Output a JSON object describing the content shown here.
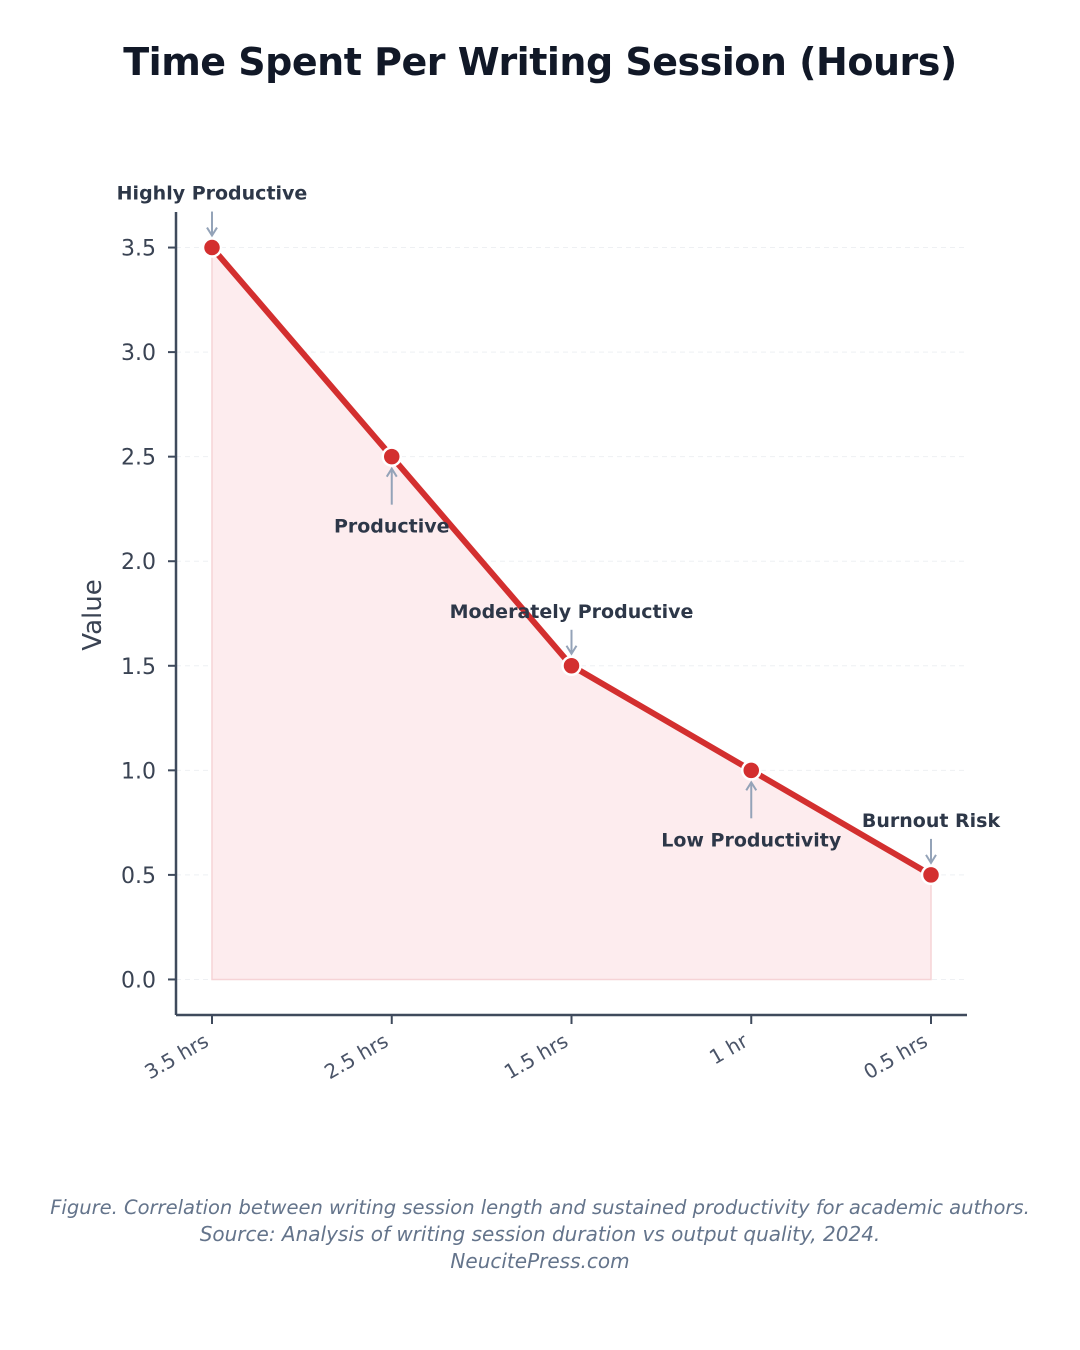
{
  "chart_data": {
    "type": "area",
    "title": "Time Spent Per Writing Session (Hours)",
    "xlabel": "",
    "ylabel": "Value",
    "categories": [
      "3.5 hrs",
      "2.5 hrs",
      "1.5 hrs",
      "1 hr",
      "0.5 hrs"
    ],
    "values": [
      3.5,
      2.5,
      1.5,
      1.0,
      0.5
    ],
    "annotations": [
      {
        "label": "Highly Productive",
        "index": 0,
        "placement": "above"
      },
      {
        "label": "Productive",
        "index": 1,
        "placement": "below"
      },
      {
        "label": "Moderately Productive",
        "index": 2,
        "placement": "above"
      },
      {
        "label": "Low Productivity",
        "index": 3,
        "placement": "below"
      },
      {
        "label": "Burnout Risk",
        "index": 4,
        "placement": "above"
      }
    ],
    "ylim": [
      -0.17,
      3.67
    ],
    "yticks": [
      "0.0",
      "0.5",
      "1.0",
      "1.5",
      "2.0",
      "2.5",
      "3.0",
      "3.5"
    ],
    "grid": true,
    "legend": "none",
    "colors": {
      "line": "#d32f2f",
      "fill": "#fdecee",
      "axis": "#3f4a5c",
      "annotation_text": "#2d3748",
      "arrow": "#94a3b8"
    }
  },
  "caption": {
    "line1": "Figure. Correlation between writing session length and sustained productivity for academic authors.",
    "line2": "Source: Analysis of writing session duration vs output quality, 2024.",
    "line3": "NeucitePress.com"
  }
}
